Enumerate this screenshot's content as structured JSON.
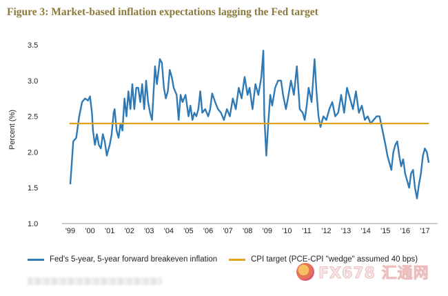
{
  "chart_data": {
    "type": "line",
    "title": "Figure 3: Market-based inflation expectations lagging the Fed target",
    "ylabel": "Percent (%)",
    "xlabel": "",
    "ylim": [
      1.0,
      3.5
    ],
    "yticks": [
      "3.5",
      "3.0",
      "2.5",
      "2.0",
      "1.5",
      "1.0"
    ],
    "ytick_values": [
      3.5,
      3.0,
      2.5,
      2.0,
      1.5,
      1.0
    ],
    "xticks": [
      "'99",
      "'00",
      "'01",
      "'02",
      "'03",
      "'04",
      "'05",
      "'06",
      "'07",
      "'08",
      "'09",
      "'10",
      "'11",
      "'12",
      "'13",
      "'14",
      "'15",
      "'16",
      "'17"
    ],
    "xtick_years": [
      1999,
      2000,
      2001,
      2002,
      2003,
      2004,
      2005,
      2006,
      2007,
      2008,
      2009,
      2010,
      2011,
      2012,
      2013,
      2014,
      2015,
      2016,
      2017
    ],
    "xlim": [
      1999,
      2017.3
    ],
    "legend_position": "bottom",
    "series": [
      {
        "name": "Fed's 5-year, 5-year forward breakeven inflation",
        "color": "#2f79b5",
        "x": [
          1999.0,
          1999.15,
          1999.3,
          1999.45,
          1999.6,
          1999.75,
          1999.9,
          2000.0,
          2000.1,
          2000.15,
          2000.25,
          2000.35,
          2000.45,
          2000.55,
          2000.65,
          2000.75,
          2000.85,
          2000.95,
          2001.0,
          2001.1,
          2001.2,
          2001.25,
          2001.35,
          2001.45,
          2001.55,
          2001.65,
          2001.75,
          2001.85,
          2001.95,
          2002.05,
          2002.15,
          2002.25,
          2002.35,
          2002.45,
          2002.55,
          2002.65,
          2002.75,
          2002.85,
          2002.95,
          2003.05,
          2003.15,
          2003.3,
          2003.4,
          2003.55,
          2003.65,
          2003.75,
          2003.85,
          2003.95,
          2004.05,
          2004.15,
          2004.25,
          2004.4,
          2004.5,
          2004.6,
          2004.7,
          2004.85,
          2005.0,
          2005.1,
          2005.2,
          2005.3,
          2005.4,
          2005.5,
          2005.6,
          2005.7,
          2005.85,
          2006.0,
          2006.1,
          2006.2,
          2006.35,
          2006.5,
          2006.65,
          2006.8,
          2006.95,
          2007.1,
          2007.25,
          2007.4,
          2007.55,
          2007.7,
          2007.85,
          2008.0,
          2008.1,
          2008.25,
          2008.4,
          2008.55,
          2008.7,
          2008.8,
          2008.85,
          2008.95,
          2009.05,
          2009.15,
          2009.25,
          2009.4,
          2009.55,
          2009.7,
          2009.8,
          2009.95,
          2010.05,
          2010.2,
          2010.35,
          2010.5,
          2010.65,
          2010.8,
          2010.9,
          2011.0,
          2011.1,
          2011.25,
          2011.4,
          2011.5,
          2011.6,
          2011.7,
          2011.85,
          2012.0,
          2012.15,
          2012.3,
          2012.45,
          2012.6,
          2012.75,
          2012.9,
          2013.05,
          2013.2,
          2013.35,
          2013.5,
          2013.65,
          2013.8,
          2013.95,
          2014.1,
          2014.25,
          2014.4,
          2014.55,
          2014.7,
          2014.85,
          2015.0,
          2015.1,
          2015.2,
          2015.3,
          2015.4,
          2015.5,
          2015.6,
          2015.7,
          2015.8,
          2015.9,
          2016.0,
          2016.1,
          2016.2,
          2016.3,
          2016.4,
          2016.5,
          2016.6,
          2016.7,
          2016.8,
          2016.9,
          2017.0,
          2017.1,
          2017.2
        ],
        "y": [
          1.55,
          2.15,
          2.2,
          2.5,
          2.7,
          2.75,
          2.72,
          2.78,
          2.55,
          2.3,
          2.1,
          2.25,
          2.1,
          2.05,
          2.25,
          2.15,
          1.95,
          2.05,
          2.1,
          2.25,
          2.55,
          2.6,
          2.3,
          2.2,
          2.4,
          2.3,
          2.75,
          2.5,
          2.85,
          2.6,
          2.95,
          2.6,
          2.9,
          2.9,
          2.7,
          2.95,
          2.6,
          3.0,
          2.7,
          2.55,
          2.45,
          3.2,
          2.95,
          3.3,
          3.25,
          2.9,
          2.75,
          2.85,
          3.15,
          3.05,
          2.9,
          2.8,
          2.45,
          2.8,
          2.7,
          2.8,
          2.5,
          2.65,
          2.45,
          2.55,
          2.5,
          2.6,
          2.85,
          2.55,
          2.6,
          2.5,
          2.6,
          2.82,
          2.7,
          2.6,
          2.55,
          2.45,
          2.6,
          2.5,
          2.75,
          2.6,
          2.9,
          2.75,
          3.05,
          2.8,
          2.9,
          2.6,
          2.95,
          2.8,
          3.05,
          3.42,
          2.5,
          1.95,
          2.4,
          2.8,
          2.65,
          2.9,
          3.0,
          3.0,
          2.8,
          2.6,
          2.75,
          3.0,
          2.8,
          3.2,
          2.6,
          2.55,
          2.45,
          2.65,
          2.9,
          2.7,
          3.3,
          2.85,
          2.5,
          2.35,
          2.5,
          2.45,
          2.6,
          2.7,
          2.5,
          2.55,
          2.8,
          2.55,
          2.9,
          2.75,
          2.6,
          2.85,
          2.55,
          2.65,
          2.45,
          2.5,
          2.4,
          2.45,
          2.5,
          2.5,
          2.3,
          2.1,
          1.95,
          1.85,
          1.75,
          2.0,
          2.1,
          2.15,
          1.95,
          1.8,
          1.9,
          1.7,
          1.6,
          1.5,
          1.7,
          1.75,
          1.5,
          1.35,
          1.55,
          1.7,
          1.95,
          2.05,
          2.0,
          1.85
        ]
      },
      {
        "name": "CPI target (PCE-CPI \"wedge\" assumed 40 bps)",
        "color": "#e0a11b",
        "x": [
          1998.95,
          2017.2
        ],
        "y": [
          2.4,
          2.4
        ]
      }
    ]
  }
}
